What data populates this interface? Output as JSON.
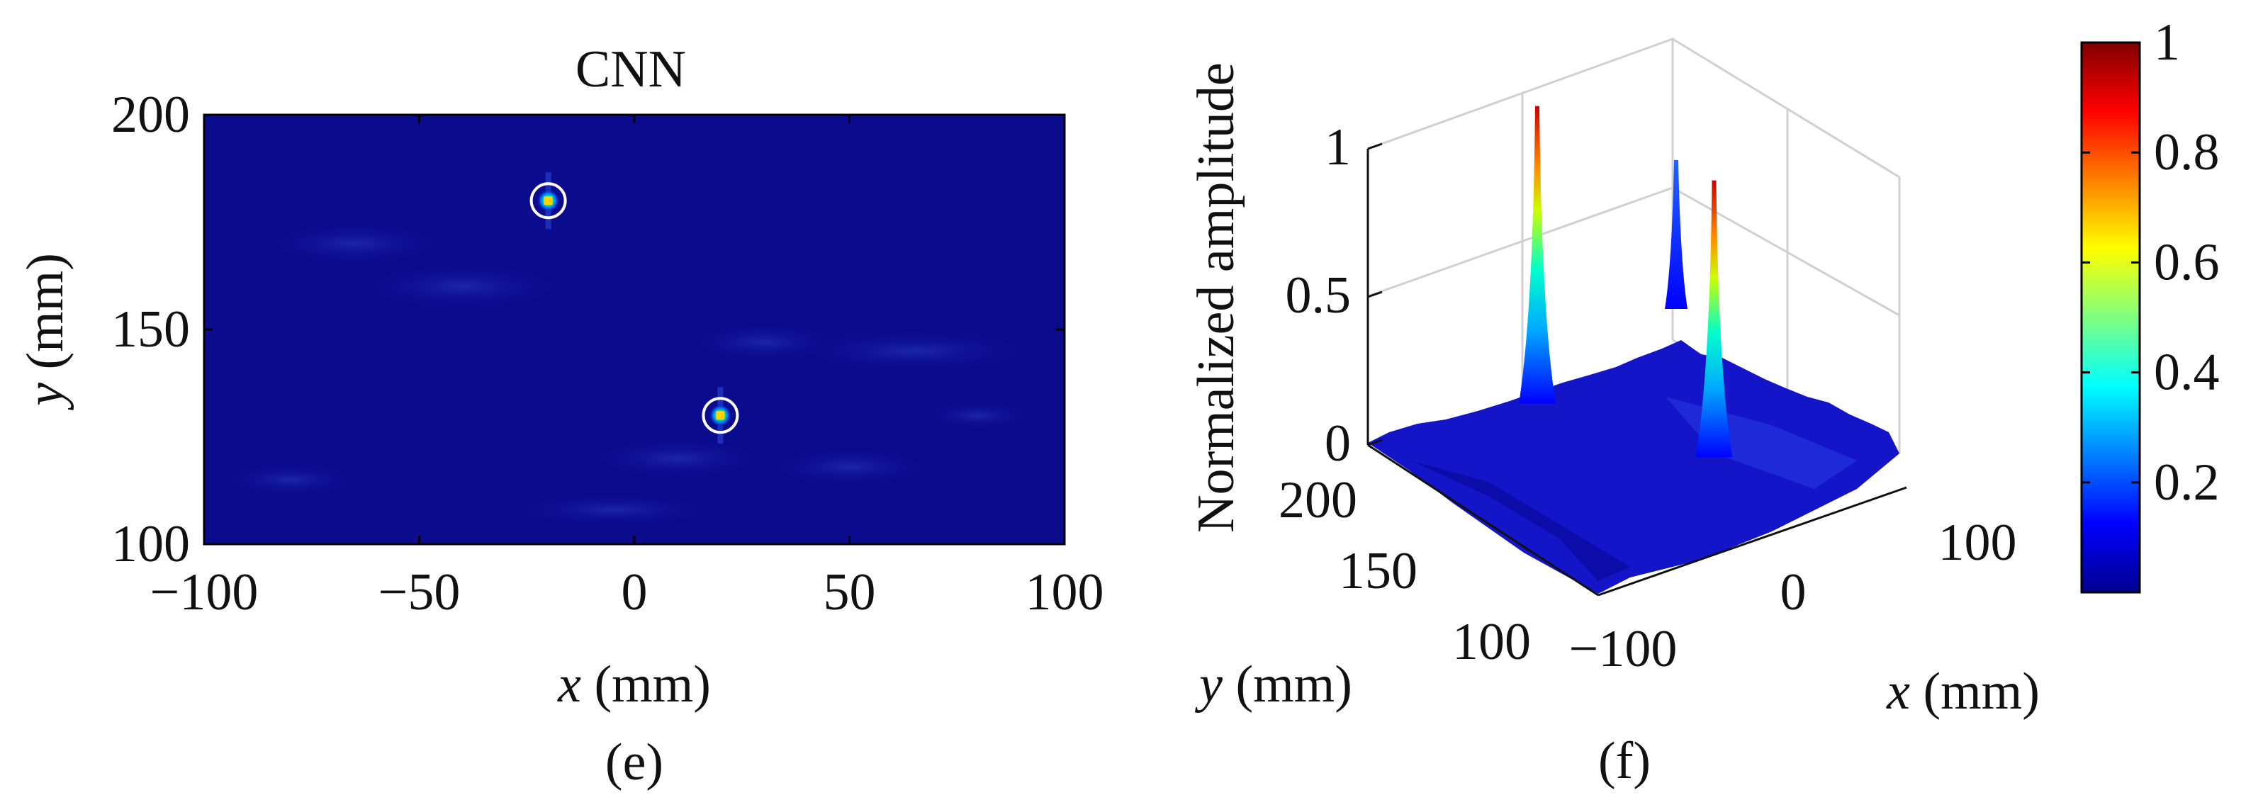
{
  "chart_data": [
    {
      "type": "heatmap",
      "title": "CNN",
      "xlabel_var": "x",
      "xlabel_unit": " (mm)",
      "ylabel_var": "y",
      "ylabel_unit": " (mm)",
      "xlim": [
        -100,
        100
      ],
      "ylim": [
        100,
        200
      ],
      "xticks": [
        -100,
        -50,
        0,
        50,
        100
      ],
      "yticks": [
        100,
        150,
        200
      ],
      "xtick_labels": [
        "−100",
        "−50",
        "0",
        "50",
        "100"
      ],
      "ytick_labels": [
        "100",
        "150",
        "200"
      ],
      "background_color": "#0b0b8e",
      "targets": [
        {
          "x": -20,
          "y": 180,
          "amplitude": 1.0
        },
        {
          "x": 20,
          "y": 130,
          "amplitude": 1.0
        }
      ],
      "panel_label": "(e)"
    },
    {
      "type": "surface",
      "zlabel": "Normalized amplitude",
      "xlabel_var": "x",
      "xlabel_unit": " (mm)",
      "ylabel_var": "y",
      "ylabel_unit": " (mm)",
      "zlim": [
        0,
        1
      ],
      "zticks": [
        0,
        0.5,
        1
      ],
      "ztick_labels": [
        "0",
        "0.5",
        "1"
      ],
      "xtick_labels": [
        "−100",
        "0",
        "100"
      ],
      "ytick_labels": [
        "200",
        "150",
        "100"
      ],
      "peaks": [
        {
          "x": -20,
          "y": 180,
          "z": 1.0
        },
        {
          "x": 20,
          "y": 130,
          "z": 0.93
        },
        {
          "x": 100,
          "y": 200,
          "z": 0.5
        }
      ],
      "panel_label": "(f)"
    }
  ],
  "colorbar": {
    "colormap": "jet",
    "range": [
      0,
      1
    ],
    "tick_labels": [
      "0.2",
      "0.4",
      "0.6",
      "0.8",
      "1"
    ],
    "tick_values": [
      0.2,
      0.4,
      0.6,
      0.8,
      1.0
    ]
  }
}
